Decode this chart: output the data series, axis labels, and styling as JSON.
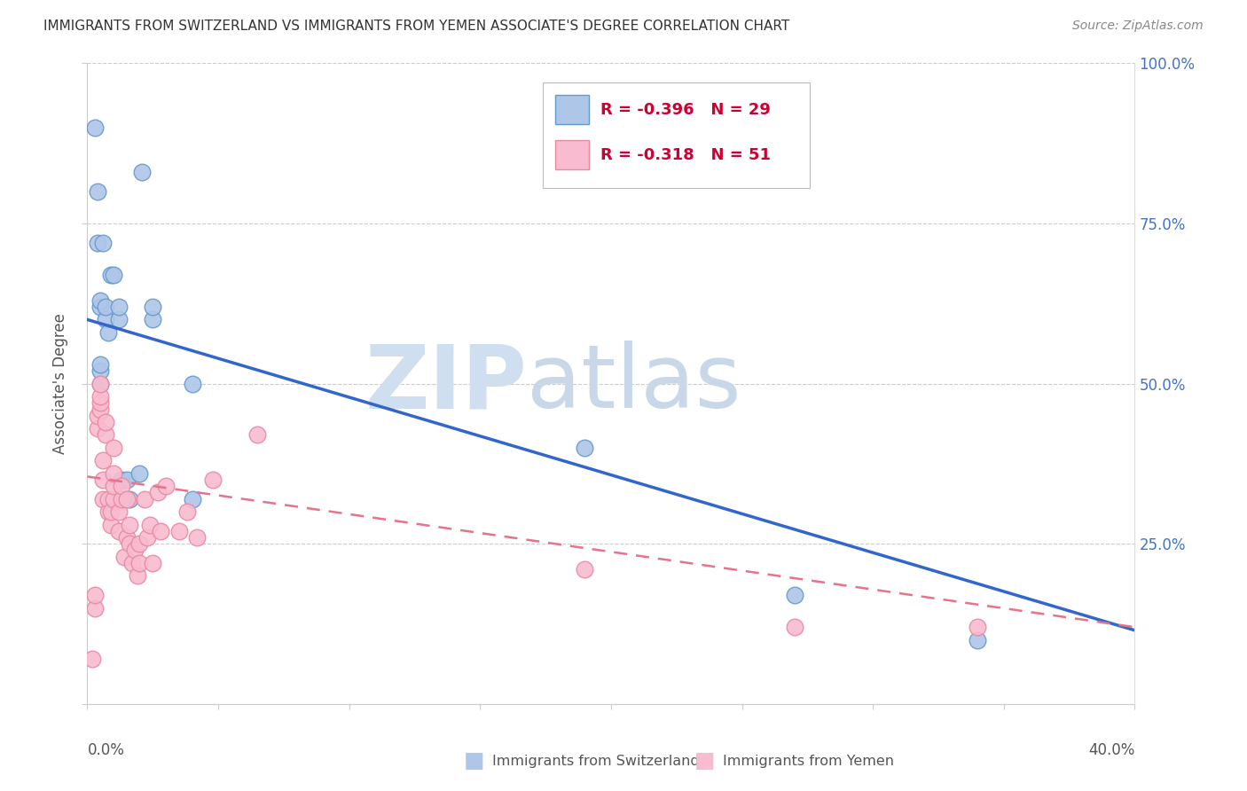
{
  "title": "IMMIGRANTS FROM SWITZERLAND VS IMMIGRANTS FROM YEMEN ASSOCIATE'S DEGREE CORRELATION CHART",
  "source": "Source: ZipAtlas.com",
  "ylabel": "Associate's Degree",
  "watermark_zip": "ZIP",
  "watermark_atlas": "atlas",
  "swiss_scatter_x": [
    0.003,
    0.004,
    0.004,
    0.005,
    0.005,
    0.005,
    0.005,
    0.005,
    0.006,
    0.007,
    0.007,
    0.008,
    0.009,
    0.01,
    0.012,
    0.012,
    0.013,
    0.015,
    0.016,
    0.02,
    0.021,
    0.025,
    0.025,
    0.04,
    0.04,
    0.19,
    0.27,
    0.34
  ],
  "swiss_scatter_y": [
    0.9,
    0.8,
    0.72,
    0.5,
    0.52,
    0.53,
    0.62,
    0.63,
    0.72,
    0.6,
    0.62,
    0.58,
    0.67,
    0.67,
    0.6,
    0.62,
    0.35,
    0.35,
    0.32,
    0.36,
    0.83,
    0.6,
    0.62,
    0.32,
    0.5,
    0.4,
    0.17,
    0.1
  ],
  "yemen_scatter_x": [
    0.002,
    0.003,
    0.003,
    0.004,
    0.004,
    0.005,
    0.005,
    0.005,
    0.005,
    0.006,
    0.006,
    0.006,
    0.007,
    0.007,
    0.008,
    0.008,
    0.009,
    0.009,
    0.01,
    0.01,
    0.01,
    0.01,
    0.012,
    0.012,
    0.013,
    0.013,
    0.014,
    0.015,
    0.015,
    0.016,
    0.016,
    0.017,
    0.018,
    0.019,
    0.02,
    0.02,
    0.022,
    0.023,
    0.024,
    0.025,
    0.027,
    0.028,
    0.03,
    0.035,
    0.038,
    0.042,
    0.048,
    0.065,
    0.19,
    0.27,
    0.34
  ],
  "yemen_scatter_y": [
    0.07,
    0.15,
    0.17,
    0.43,
    0.45,
    0.46,
    0.47,
    0.48,
    0.5,
    0.32,
    0.35,
    0.38,
    0.42,
    0.44,
    0.3,
    0.32,
    0.28,
    0.3,
    0.32,
    0.34,
    0.36,
    0.4,
    0.27,
    0.3,
    0.32,
    0.34,
    0.23,
    0.26,
    0.32,
    0.25,
    0.28,
    0.22,
    0.24,
    0.2,
    0.22,
    0.25,
    0.32,
    0.26,
    0.28,
    0.22,
    0.33,
    0.27,
    0.34,
    0.27,
    0.3,
    0.26,
    0.35,
    0.42,
    0.21,
    0.12,
    0.12
  ],
  "swiss_color": "#aec6e8",
  "swiss_edge_color": "#6699cc",
  "yemen_color": "#f8bbd0",
  "yemen_edge_color": "#e88aa0",
  "swiss_line_color": "#3366cc",
  "yemen_line_color": "#e8728a",
  "swiss_line_x0": 0.0,
  "swiss_line_y0": 0.6,
  "swiss_line_x1": 0.4,
  "swiss_line_y1": 0.115,
  "yemen_line_x0": 0.0,
  "yemen_line_y0": 0.355,
  "yemen_line_x1": 0.4,
  "yemen_line_y1": 0.12,
  "background_color": "#ffffff",
  "grid_color": "#cccccc",
  "xlim": [
    0.0,
    0.4
  ],
  "ylim": [
    0.0,
    1.0
  ],
  "legend_swiss_color": "#aec6e8",
  "legend_swiss_edge": "#6699cc",
  "legend_yemen_color": "#f8bbd0",
  "legend_yemen_edge": "#e88aa0",
  "legend_text_color_r": "#cc0033",
  "legend_text_color_n": "#3366cc"
}
